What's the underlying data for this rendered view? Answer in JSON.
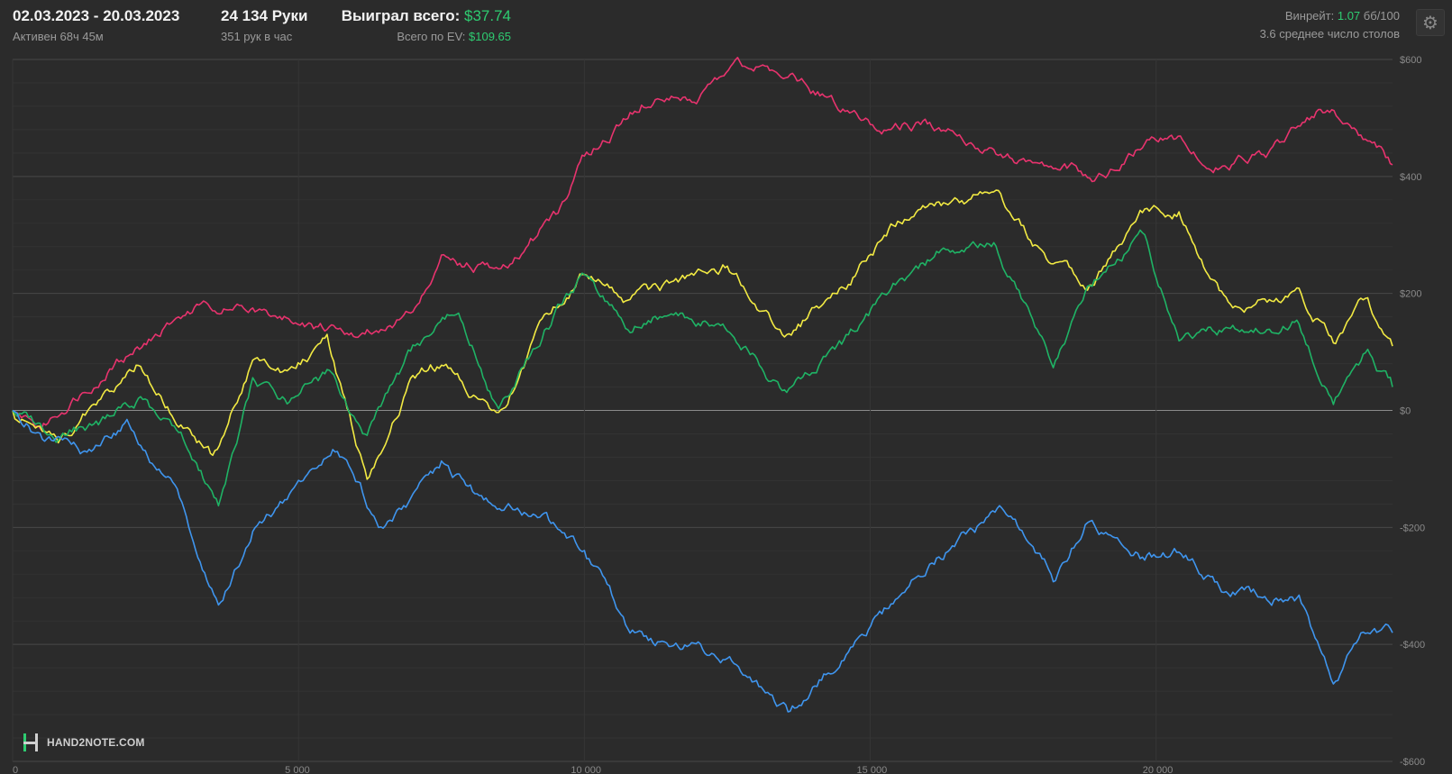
{
  "header": {
    "date_range": "02.03.2023 - 20.03.2023",
    "active": "Активен 68ч 45м",
    "hands": "24 134 Руки",
    "hands_per_hour": "351 рук в час",
    "won_label": "Выиграл всего:",
    "won_value": "$37.74",
    "ev_label": "Всего по EV:",
    "ev_value": "$109.65",
    "winrate_label": "Винрейт:",
    "winrate_value": "1.07",
    "winrate_unit": "бб/100",
    "avg_tables": "3.6 среднее число столов"
  },
  "icons": {
    "settings": "gear-icon",
    "logo": "hand2note-logo-icon"
  },
  "logo_text": "HAND2NOTE.COM",
  "colors": {
    "background": "#2b2b2b",
    "grid": "#3a3a3a",
    "zero_line": "#8a8a8a",
    "red": "#e8336e",
    "yellow": "#f2ea43",
    "green": "#1fb365",
    "blue": "#3f95ee",
    "accent_green": "#2ecc71"
  },
  "chart_data": {
    "type": "line",
    "x_ticks": [
      0,
      5000,
      10000,
      15000,
      20000
    ],
    "x_tick_labels": [
      "0",
      "5 000",
      "10 000",
      "15 000",
      "20 000"
    ],
    "y_ticks": [
      600,
      400,
      200,
      0,
      -200,
      -400,
      -600
    ],
    "y_tick_labels": [
      "$600",
      "$400",
      "$200",
      "$0",
      "-$200",
      "-$400",
      "-$600"
    ],
    "xlim": [
      0,
      24134
    ],
    "ylim": [
      -600,
      600
    ],
    "grid": true,
    "series": [
      {
        "color": "#e8336e",
        "x": [
          0,
          500,
          1500,
          2500,
          3300,
          4200,
          5500,
          6000,
          7000,
          7500,
          8500,
          9500,
          10000,
          11000,
          12000,
          12600,
          13400,
          15000,
          16000,
          17000,
          18000,
          19000,
          20000,
          20500,
          21000,
          22000,
          22800,
          23500,
          24134
        ],
        "y": [
          0,
          -30,
          60,
          130,
          180,
          170,
          140,
          130,
          170,
          260,
          240,
          330,
          430,
          530,
          530,
          590,
          580,
          490,
          490,
          450,
          420,
          400,
          470,
          460,
          410,
          440,
          510,
          490,
          420
        ]
      },
      {
        "color": "#f2ea43",
        "x": [
          0,
          800,
          1500,
          2200,
          3100,
          3500,
          4200,
          4800,
          5500,
          6200,
          7000,
          7500,
          8500,
          9300,
          10000,
          10800,
          11600,
          12500,
          13500,
          14500,
          15400,
          16200,
          17200,
          18200,
          18800,
          19800,
          20400,
          21300,
          22500,
          23100,
          23700,
          24134
        ],
        "y": [
          0,
          -60,
          20,
          80,
          -40,
          -80,
          80,
          60,
          120,
          -120,
          60,
          80,
          -20,
          150,
          240,
          190,
          210,
          250,
          130,
          200,
          320,
          350,
          370,
          250,
          210,
          340,
          340,
          170,
          200,
          120,
          190,
          110
        ]
      },
      {
        "color": "#1fb365",
        "x": [
          0,
          800,
          1500,
          2200,
          3100,
          3600,
          4200,
          4800,
          5500,
          6200,
          7000,
          7800,
          8500,
          9300,
          10000,
          10800,
          11600,
          12500,
          13500,
          14500,
          15400,
          16200,
          17200,
          18200,
          18800,
          19800,
          20400,
          21300,
          22500,
          23100,
          23700,
          24134
        ],
        "y": [
          0,
          -40,
          -20,
          20,
          -60,
          -160,
          50,
          20,
          60,
          -40,
          100,
          180,
          0,
          140,
          230,
          140,
          170,
          140,
          30,
          110,
          210,
          270,
          280,
          80,
          210,
          300,
          120,
          140,
          150,
          10,
          100,
          40
        ]
      },
      {
        "color": "#3f95ee",
        "x": [
          0,
          600,
          1300,
          2000,
          2800,
          3600,
          4200,
          5000,
          5600,
          6400,
          7000,
          7500,
          8200,
          9300,
          10000,
          10800,
          11600,
          12500,
          13600,
          14500,
          15400,
          16200,
          17300,
          18200,
          18800,
          19800,
          20400,
          21300,
          22500,
          23100,
          23700,
          24134
        ],
        "y": [
          0,
          -50,
          -80,
          -20,
          -130,
          -340,
          -200,
          -140,
          -60,
          -190,
          -150,
          -90,
          -150,
          -190,
          -240,
          -380,
          -400,
          -420,
          -520,
          -420,
          -330,
          -250,
          -170,
          -290,
          -190,
          -250,
          -240,
          -310,
          -320,
          -460,
          -380,
          -380
        ]
      }
    ]
  }
}
